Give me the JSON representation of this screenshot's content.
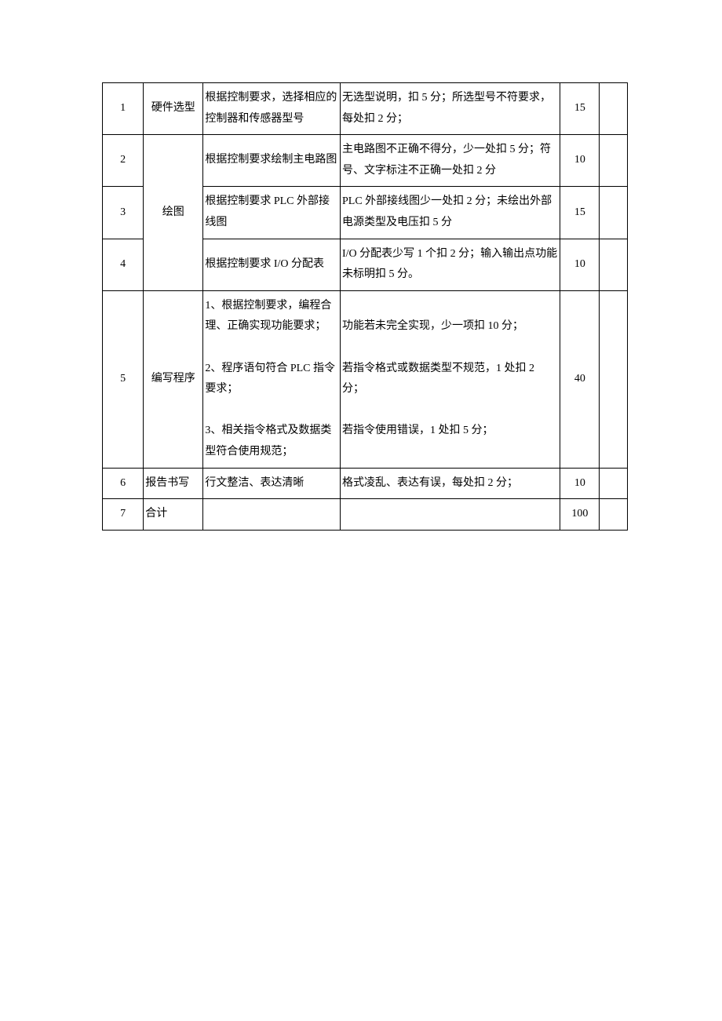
{
  "rows": [
    {
      "num": "1",
      "category": "硬件选型",
      "requirement": "根据控制要求，选择相应的控制器和传感器型号",
      "criteria": "无选型说明，扣 5 分；所选型号不符要求，每处扣 2 分；",
      "score": "15"
    },
    {
      "num": "2",
      "category": "绘图",
      "requirement": "根据控制要求绘制主电路图",
      "criteria": "主电路图不正确不得分，少一处扣 5 分；符号、文字标注不正确一处扣 2 分",
      "score": "10"
    },
    {
      "num": "3",
      "requirement": "根据控制要求 PLC 外部接线图",
      "criteria": "PLC 外部接线图少一处扣 2 分；未绘出外部电源类型及电压扣 5 分",
      "score": "15"
    },
    {
      "num": "4",
      "requirement": "根据控制要求 I/O 分配表",
      "criteria": "I/O 分配表少写 1 个扣 2 分；输入输出点功能未标明扣 5 分。",
      "score": "10"
    },
    {
      "num": "5",
      "category": "编写程序",
      "requirement_html": "1、根据控制要求，编程合理、正确实现功能要求；<br><br>2、程序语句符合 PLC 指令要求；<br><br>3、相关指令格式及数据类型符合使用规范；",
      "criteria_html": "功能若未完全实现，少一项扣 10 分；<br><br>若指令格式或数据类型不规范，1 处扣 2 分；<br><br>若指令使用错误，1 处扣 5 分；",
      "score": "40"
    },
    {
      "num": "6",
      "category": "报告书写",
      "requirement": "行文整洁、表达清晰",
      "criteria": "格式凌乱、表达有误，每处扣 2 分；",
      "score": "10"
    },
    {
      "num": "7",
      "category": "合计",
      "requirement": "",
      "criteria": "",
      "score": "100"
    }
  ]
}
